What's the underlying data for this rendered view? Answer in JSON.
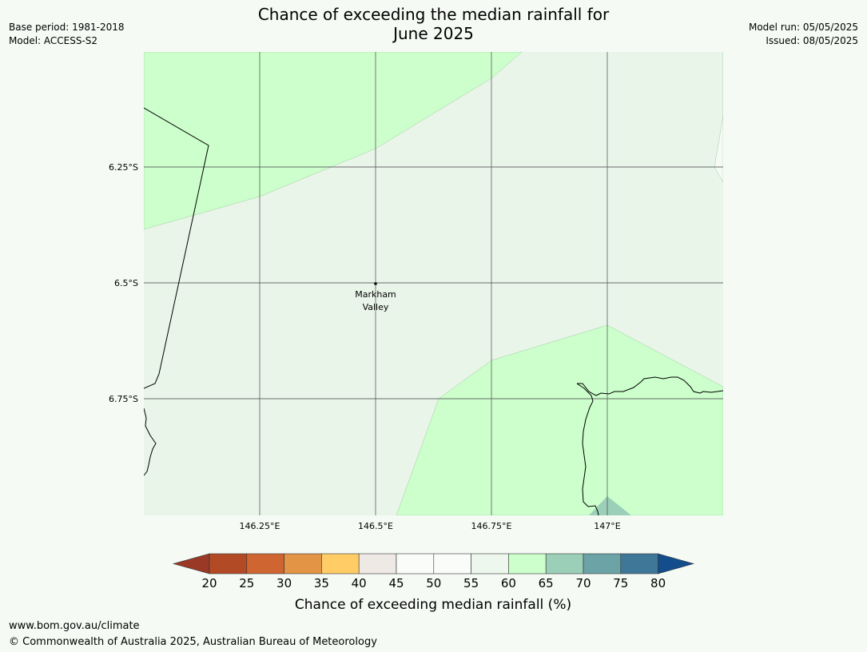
{
  "header": {
    "title_line1": "Chance of exceeding the median rainfall for",
    "title_line2": "June 2025",
    "base_period": "Base period: 1981-2018",
    "model": "Model: ACCESS-S2",
    "model_run": "Model run: 05/05/2025",
    "issued": "Issued: 08/05/2025"
  },
  "map": {
    "lon_ticks": [
      "146.25°E",
      "146.5°E",
      "146.75°E",
      "147°E"
    ],
    "lat_ticks": [
      "6.25°S",
      "6.5°S",
      "6.75°S"
    ],
    "place": {
      "name_line1": "Markham",
      "name_line2": "Valley"
    },
    "colors": {
      "background_50_60": "#eaf5ea",
      "band_60_65": "#ccffcc",
      "band_65_70": "#9bcfb8",
      "grid": "#555555",
      "coast": "#000000"
    }
  },
  "legend": {
    "tick_labels": [
      "20",
      "25",
      "30",
      "35",
      "40",
      "45",
      "50",
      "55",
      "60",
      "65",
      "70",
      "75",
      "80"
    ],
    "label": "Chance of exceeding median rainfall (%)",
    "low_extend_color": "#993926",
    "high_extend_color": "#134d8c",
    "colors": [
      "#b34a26",
      "#cf6632",
      "#e39545",
      "#ffcc66",
      "#efe9e6",
      "#fafcfa",
      "#fafcfa",
      "#eef7ee",
      "#ccffcc",
      "#9bcfb8",
      "#6ba3a6",
      "#3f7799"
    ]
  },
  "footer": {
    "url": "www.bom.gov.au/climate",
    "copyright": "© Commonwealth of Australia 2025, Australian Bureau of Meteorology"
  }
}
